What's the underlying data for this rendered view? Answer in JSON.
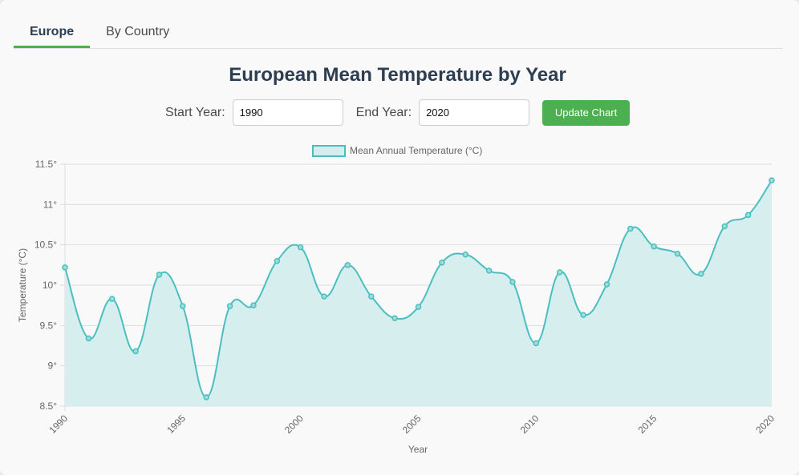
{
  "tabs": [
    {
      "label": "Europe",
      "active": true
    },
    {
      "label": "By Country",
      "active": false
    }
  ],
  "title": "European Mean Temperature by Year",
  "controls": {
    "start_label": "Start Year:",
    "start_value": "1990",
    "end_label": "End Year:",
    "end_value": "2020",
    "update_label": "Update Chart"
  },
  "colors": {
    "accent": "#4caf50",
    "line": "#4bbfbf",
    "fill": "#d5eded",
    "title": "#2c3e50"
  },
  "chart_data": {
    "type": "area",
    "legend": {
      "label": "Mean Annual Temperature (°C)",
      "placement": "top-center"
    },
    "xlabel": "Year",
    "ylabel": "Temperature (°C)",
    "ylim": [
      8.5,
      11.5
    ],
    "y_ticks": [
      8.5,
      9,
      9.5,
      10,
      10.5,
      11,
      11.5
    ],
    "y_tick_labels": [
      "8.5°",
      "9°",
      "9.5°",
      "10°",
      "10.5°",
      "11°",
      "11.5°"
    ],
    "x_ticks": [
      1990,
      1995,
      2000,
      2005,
      2010,
      2015,
      2020
    ],
    "grid": true,
    "x": [
      1990,
      1991,
      1992,
      1993,
      1994,
      1995,
      1996,
      1997,
      1998,
      1999,
      2000,
      2001,
      2002,
      2003,
      2004,
      2005,
      2006,
      2007,
      2008,
      2009,
      2010,
      2011,
      2012,
      2013,
      2014,
      2015,
      2016,
      2017,
      2018,
      2019,
      2020
    ],
    "values": [
      10.22,
      9.34,
      9.83,
      9.18,
      10.13,
      9.74,
      8.61,
      9.74,
      9.75,
      10.3,
      10.47,
      9.86,
      10.25,
      9.86,
      9.59,
      9.73,
      10.28,
      10.38,
      10.18,
      10.04,
      9.28,
      10.16,
      9.63,
      10.01,
      10.7,
      10.48,
      10.39,
      10.14,
      10.73,
      10.87,
      11.3
    ]
  }
}
